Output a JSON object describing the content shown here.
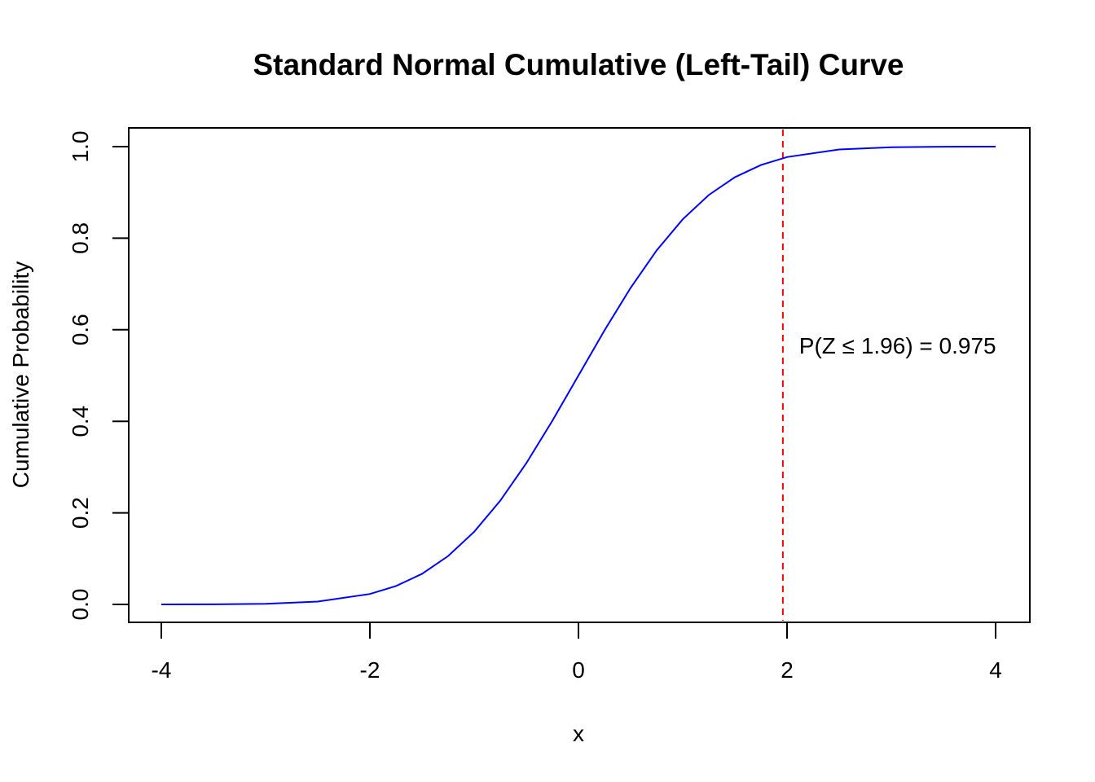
{
  "chart_data": {
    "type": "line",
    "title": "Standard Normal Cumulative (Left-Tail) Curve",
    "xlabel": "x",
    "ylabel": "Cumulative Probability",
    "xlim": [
      -4,
      4
    ],
    "ylim": [
      0,
      1
    ],
    "x_ticks": [
      -4,
      -2,
      0,
      2,
      4
    ],
    "x_tick_labels": [
      "-4",
      "-2",
      "0",
      "2",
      "4"
    ],
    "y_ticks": [
      0,
      0.2,
      0.4,
      0.6,
      0.8,
      1.0
    ],
    "y_tick_labels": [
      "0.0",
      "0.2",
      "0.4",
      "0.6",
      "0.8",
      "1.0"
    ],
    "grid": false,
    "series": [
      {
        "color": "#0000ff",
        "x": [
          -4.0,
          -3.5,
          -3.0,
          -2.5,
          -2.0,
          -1.75,
          -1.5,
          -1.25,
          -1.0,
          -0.75,
          -0.5,
          -0.25,
          0.0,
          0.25,
          0.5,
          0.75,
          1.0,
          1.25,
          1.5,
          1.75,
          2.0,
          2.5,
          3.0,
          3.5,
          4.0
        ],
        "y": [
          3e-05,
          0.0002,
          0.0013,
          0.0062,
          0.0228,
          0.0401,
          0.0668,
          0.1056,
          0.1587,
          0.2266,
          0.3085,
          0.4013,
          0.5,
          0.5987,
          0.6915,
          0.7734,
          0.8413,
          0.8944,
          0.9332,
          0.9599,
          0.9772,
          0.9938,
          0.9987,
          0.9998,
          0.99997
        ]
      }
    ],
    "reference_line": {
      "orientation": "vertical",
      "x": 1.96,
      "color": "#ff0000",
      "style": "dashed"
    },
    "annotation": {
      "text": "P(Z ≤ 1.96) = 0.975",
      "x": 2.1,
      "y": 0.5
    }
  }
}
